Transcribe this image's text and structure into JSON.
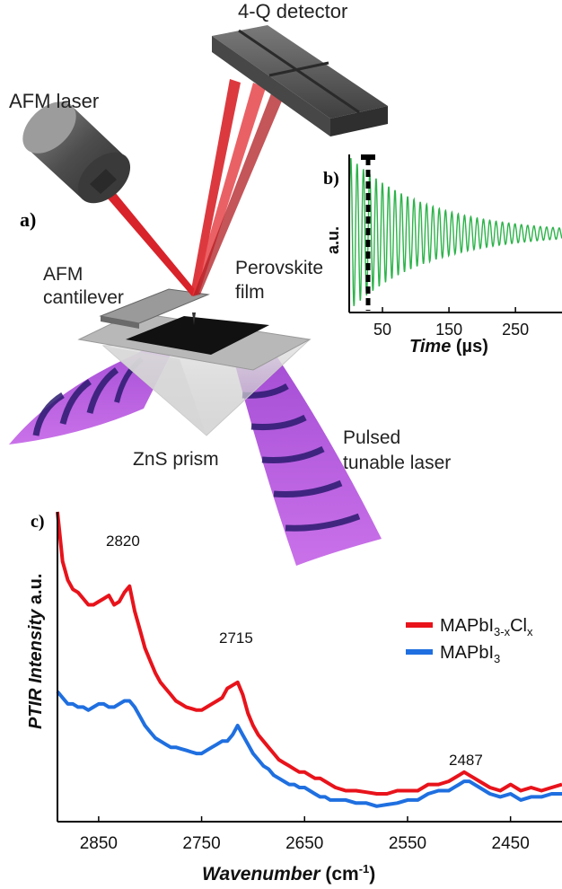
{
  "panel_a": {
    "label": "a)",
    "labels": {
      "afm_laser": "AFM laser",
      "detector": "4-Q detector",
      "cantilever_line1": "AFM",
      "cantilever_line2": "cantilever",
      "perovskite_line1": "Perovskite",
      "perovskite_line2": "film",
      "prism": "ZnS prism",
      "pulsed_line1": "Pulsed",
      "pulsed_line2": "tunable laser"
    },
    "colors": {
      "laser": "#d8232a",
      "ir_beam": "#b54fd8",
      "ir_band": "#2a1a6e",
      "body": "#5a5a5a"
    }
  },
  "panel_b": {
    "label": "b)",
    "ylabel": "a.u.",
    "xlabel_italic": "Time",
    "xlabel_unit": "(µs)",
    "xticks": [
      "50",
      "150",
      "250"
    ],
    "chart_data": {
      "type": "line",
      "x_range": [
        0,
        320
      ],
      "signal": "damped oscillation",
      "marker_x": 25,
      "color": "#2db34a"
    }
  },
  "panel_c": {
    "label": "c)",
    "ylabel_italic": "PTIR Intensity",
    "ylabel_unit": "a.u.",
    "xlabel_italic": "Wavenumber",
    "xlabel_unit": "(cm",
    "xlabel_sup": "-1",
    "xlabel_close": ")",
    "xticks": [
      "2850",
      "2750",
      "2650",
      "2550",
      "2450"
    ],
    "annotations": [
      "2820",
      "2715",
      "2487"
    ],
    "legend": {
      "item1_base": "MAPbI",
      "item1_sub": "3-x",
      "item1_mid": "Cl",
      "item1_sub2": "x",
      "item2_base": "MAPbI",
      "item2_sub": "3"
    },
    "chart_data": {
      "type": "line",
      "x_range": [
        2890,
        2400
      ],
      "series": [
        {
          "color": "#e8131b",
          "x": [
            2890,
            2885,
            2880,
            2875,
            2870,
            2865,
            2860,
            2855,
            2850,
            2845,
            2840,
            2835,
            2830,
            2825,
            2820,
            2815,
            2810,
            2805,
            2800,
            2795,
            2790,
            2785,
            2780,
            2775,
            2770,
            2765,
            2760,
            2755,
            2750,
            2745,
            2740,
            2735,
            2730,
            2725,
            2720,
            2715,
            2710,
            2705,
            2700,
            2695,
            2690,
            2685,
            2680,
            2675,
            2670,
            2665,
            2660,
            2655,
            2650,
            2645,
            2640,
            2635,
            2630,
            2625,
            2620,
            2610,
            2600,
            2590,
            2580,
            2570,
            2560,
            2550,
            2540,
            2530,
            2520,
            2510,
            2500,
            2495,
            2490,
            2485,
            2480,
            2470,
            2460,
            2450,
            2440,
            2430,
            2420,
            2410,
            2400
          ],
          "y": [
            1.0,
            0.84,
            0.78,
            0.75,
            0.74,
            0.72,
            0.7,
            0.7,
            0.71,
            0.72,
            0.73,
            0.7,
            0.71,
            0.74,
            0.76,
            0.68,
            0.62,
            0.56,
            0.52,
            0.48,
            0.45,
            0.43,
            0.41,
            0.39,
            0.38,
            0.37,
            0.365,
            0.36,
            0.36,
            0.37,
            0.38,
            0.39,
            0.4,
            0.43,
            0.44,
            0.45,
            0.41,
            0.35,
            0.31,
            0.28,
            0.26,
            0.24,
            0.22,
            0.2,
            0.19,
            0.18,
            0.17,
            0.16,
            0.16,
            0.15,
            0.14,
            0.14,
            0.13,
            0.12,
            0.11,
            0.1,
            0.1,
            0.095,
            0.09,
            0.09,
            0.1,
            0.1,
            0.1,
            0.12,
            0.12,
            0.13,
            0.15,
            0.16,
            0.15,
            0.14,
            0.13,
            0.11,
            0.1,
            0.12,
            0.1,
            0.11,
            0.1,
            0.11,
            0.12
          ]
        },
        {
          "color": "#1f6fe0",
          "x": [
            2890,
            2885,
            2880,
            2875,
            2870,
            2865,
            2860,
            2855,
            2850,
            2845,
            2840,
            2835,
            2830,
            2825,
            2820,
            2815,
            2810,
            2805,
            2800,
            2795,
            2790,
            2785,
            2780,
            2775,
            2770,
            2765,
            2760,
            2755,
            2750,
            2745,
            2740,
            2735,
            2730,
            2725,
            2720,
            2715,
            2710,
            2705,
            2700,
            2695,
            2690,
            2685,
            2680,
            2675,
            2670,
            2665,
            2660,
            2655,
            2650,
            2645,
            2640,
            2635,
            2630,
            2625,
            2620,
            2610,
            2600,
            2590,
            2580,
            2570,
            2560,
            2550,
            2540,
            2530,
            2520,
            2510,
            2500,
            2495,
            2490,
            2485,
            2480,
            2470,
            2460,
            2450,
            2440,
            2430,
            2420,
            2410,
            2400
          ],
          "y": [
            0.42,
            0.4,
            0.38,
            0.38,
            0.37,
            0.37,
            0.36,
            0.37,
            0.38,
            0.38,
            0.37,
            0.37,
            0.38,
            0.39,
            0.39,
            0.37,
            0.34,
            0.31,
            0.29,
            0.27,
            0.26,
            0.25,
            0.24,
            0.24,
            0.235,
            0.23,
            0.225,
            0.22,
            0.22,
            0.23,
            0.24,
            0.25,
            0.26,
            0.26,
            0.28,
            0.31,
            0.28,
            0.25,
            0.22,
            0.2,
            0.18,
            0.17,
            0.15,
            0.14,
            0.13,
            0.12,
            0.12,
            0.11,
            0.11,
            0.1,
            0.09,
            0.08,
            0.08,
            0.07,
            0.07,
            0.07,
            0.06,
            0.06,
            0.05,
            0.055,
            0.06,
            0.07,
            0.07,
            0.09,
            0.1,
            0.1,
            0.12,
            0.13,
            0.13,
            0.12,
            0.11,
            0.09,
            0.08,
            0.09,
            0.07,
            0.08,
            0.08,
            0.09,
            0.09
          ]
        }
      ]
    }
  }
}
